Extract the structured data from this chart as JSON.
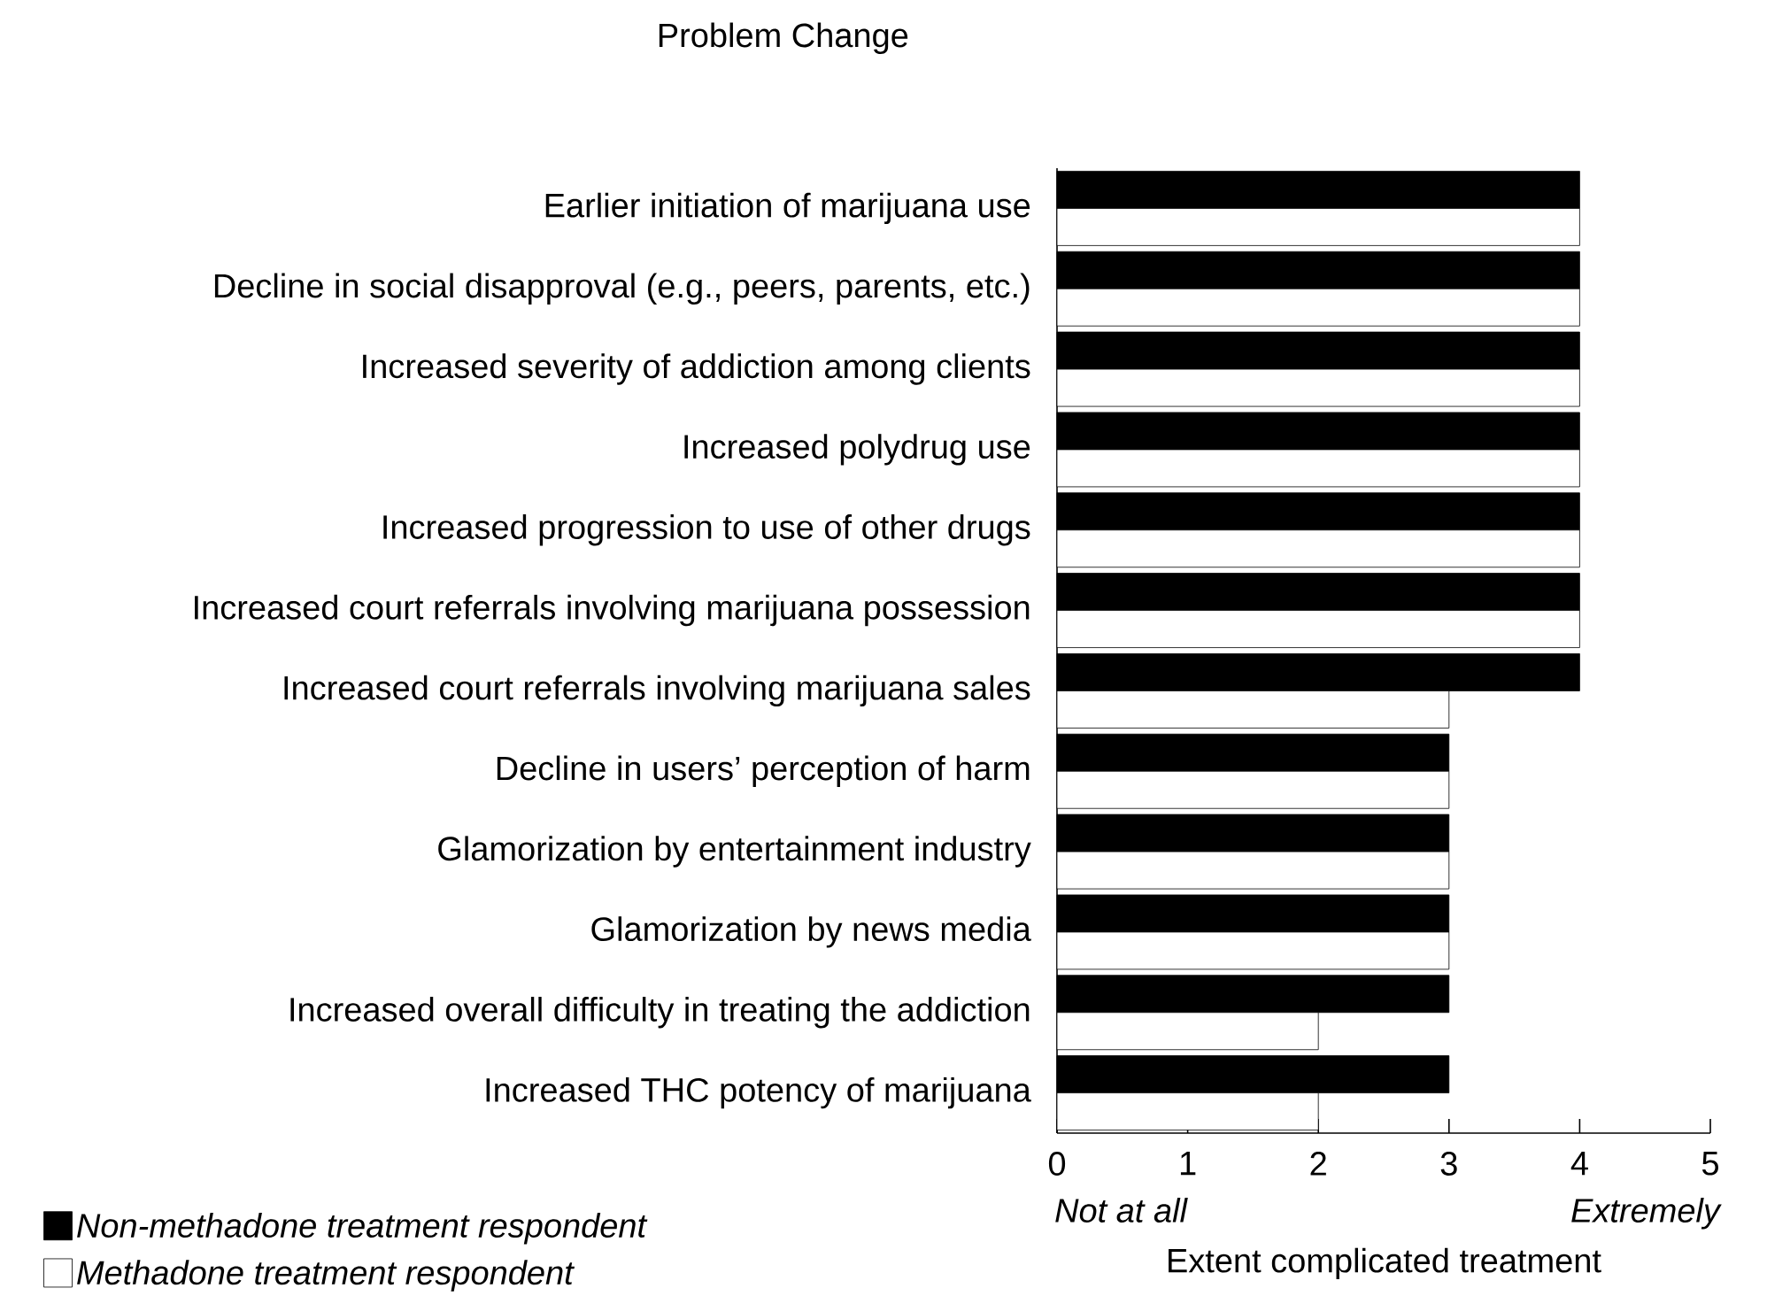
{
  "chart_data": {
    "type": "bar",
    "orientation": "horizontal",
    "ylabel": "Problem Change",
    "xlabel": "Extent complicated treatment",
    "categories": [
      "Earlier initiation of marijuana use",
      "Decline in social disapproval (e.g., peers, parents, etc.)",
      "Increased severity of addiction among clients",
      "Increased polydrug use",
      "Increased progression to use of other drugs",
      "Increased court referrals involving marijuana possession",
      "Increased court referrals involving marijuana sales",
      "Decline in users’ perception of harm",
      "Glamorization by entertainment industry",
      "Glamorization by news media",
      "Increased overall difficulty in treating the addiction",
      "Increased THC potency of marijuana"
    ],
    "series": [
      {
        "name": "Non-methadone treatment respondent",
        "color": "#000000",
        "values": [
          4,
          4,
          4,
          4,
          4,
          4,
          4,
          3,
          3,
          3,
          3,
          3
        ]
      },
      {
        "name": "Methadone treatment respondent",
        "color": "#ffffff",
        "values": [
          4,
          4,
          4,
          4,
          4,
          4,
          3,
          3,
          3,
          3,
          2,
          2
        ]
      }
    ],
    "xlim": [
      0,
      5
    ],
    "xticks": [
      0,
      1,
      2,
      3,
      4,
      5
    ],
    "annotations": [
      "Not at all",
      "Extremely"
    ],
    "legend": "bottom left",
    "grid": false
  }
}
